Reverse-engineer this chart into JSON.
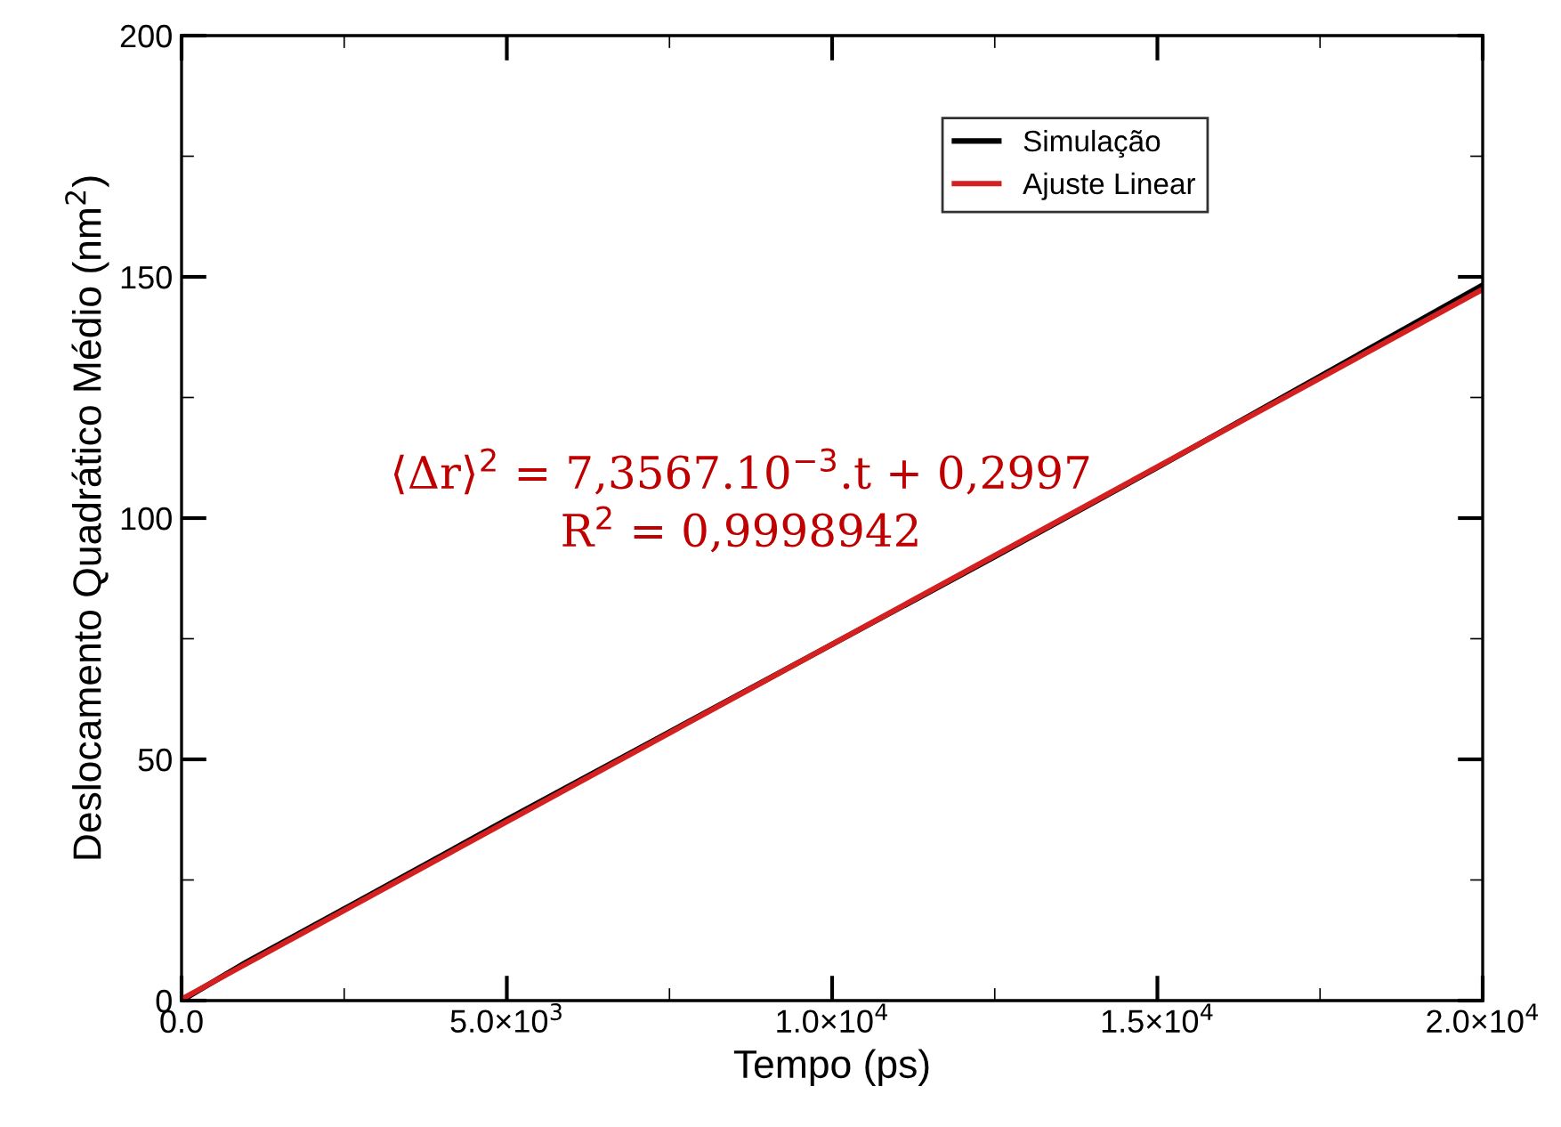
{
  "chart_data": {
    "type": "line",
    "xlabel": "Tempo (ps)",
    "ylabel": "Deslocamento Quadrático Médio (nm$^{2}$)",
    "xlim": [
      0,
      20000
    ],
    "ylim": [
      0,
      200
    ],
    "xticks": [
      {
        "value": 0,
        "label": "0.0"
      },
      {
        "value": 5000,
        "label": "5.0×10$^{3}$"
      },
      {
        "value": 10000,
        "label": "1.0×10$^{4}$"
      },
      {
        "value": 15000,
        "label": "1.5×10$^{4}$"
      },
      {
        "value": 20000,
        "label": "2.0×10$^{4}$"
      }
    ],
    "yticks": [
      0,
      50,
      100,
      150,
      200
    ],
    "series": [
      {
        "name": "Simulação",
        "color": "#000000",
        "x": [
          0,
          1000,
          2500,
          5000,
          12500,
          15000,
          20000
        ],
        "values": [
          0,
          8,
          19,
          37.5,
          92,
          110.5,
          148.3
        ]
      },
      {
        "name": "Ajuste Linear",
        "color": "#d42020",
        "x": [
          0,
          20000
        ],
        "values": [
          0.3,
          147.4
        ]
      }
    ],
    "annotations": [
      "⟨Δr⟩$^{2}$ = 7,3567.10$^{−3}$.t + 0,2997",
      "R$^{2}$ = 0,9998942"
    ],
    "legend": "top right",
    "grid": false
  }
}
